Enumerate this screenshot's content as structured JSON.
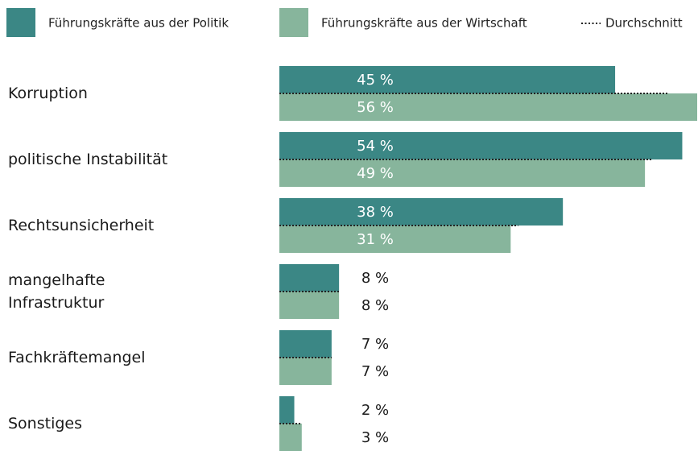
{
  "chart_data": {
    "type": "bar",
    "orientation": "horizontal",
    "categories": [
      "Korruption",
      "politische Instabilität",
      "Rechtsunsicherheit",
      "mangelhafte Infrastruktur",
      "Fachkräftemangel",
      "Sonstiges"
    ],
    "series": [
      {
        "name": "Führungskräfte aus der Politik",
        "color": "#3b8785",
        "values": [
          45,
          54,
          38,
          8,
          7,
          2
        ],
        "value_labels": [
          "45 %",
          "54 %",
          "38 %",
          "8 %",
          "7 %",
          "2 %"
        ]
      },
      {
        "name": "Führungskräfte aus der Wirtschaft",
        "color": "#87b59c",
        "values": [
          56,
          49,
          31,
          8,
          7,
          3
        ],
        "value_labels": [
          "56 %",
          "49 %",
          "31 %",
          "8 %",
          "7 %",
          "3 %"
        ]
      },
      {
        "name": "Durchschnitt",
        "color": "#222222",
        "style": "dotted",
        "values": [
          52,
          50,
          32,
          8,
          7,
          3
        ]
      }
    ]
  }
}
